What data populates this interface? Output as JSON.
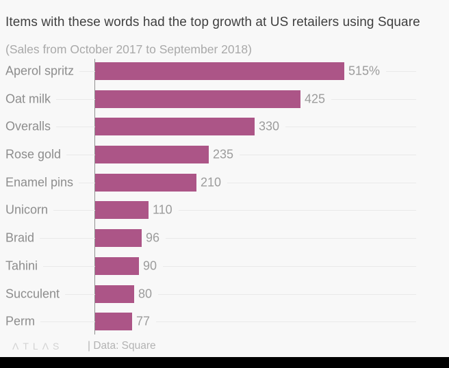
{
  "chart_data": {
    "type": "bar",
    "orientation": "horizontal",
    "title": "Items with these words had the top growth at US retailers using Square",
    "subtitle": "(Sales from October 2017 to September 2018)",
    "categories": [
      "Aperol spritz",
      "Oat milk",
      "Overalls",
      "Rose gold",
      "Enamel pins",
      "Unicorn",
      "Braid",
      "Tahini",
      "Succulent",
      "Perm"
    ],
    "values": [
      515,
      425,
      330,
      235,
      210,
      110,
      96,
      90,
      80,
      77
    ],
    "value_labels": [
      "515%",
      "425",
      "330",
      "235",
      "210",
      "110",
      "96",
      "90",
      "80",
      "77"
    ],
    "unit": "% sales growth",
    "xlim": [
      0,
      665
    ],
    "grid": "light horizontal line per row",
    "legend": "none"
  },
  "footer": {
    "logo": "ΛTLΛS",
    "source": "| Data: Square"
  },
  "colors": {
    "bar": "#ac5587",
    "background": "#f8f8f8",
    "gridline": "#e9e9e9",
    "axis": "#8f8f8f",
    "title_text": "#3f3f3f",
    "subtitle_text": "#a9a9a9",
    "label_text": "#8d8d8d",
    "value_text": "#9c9c9c",
    "footer_bar": "#000000"
  }
}
